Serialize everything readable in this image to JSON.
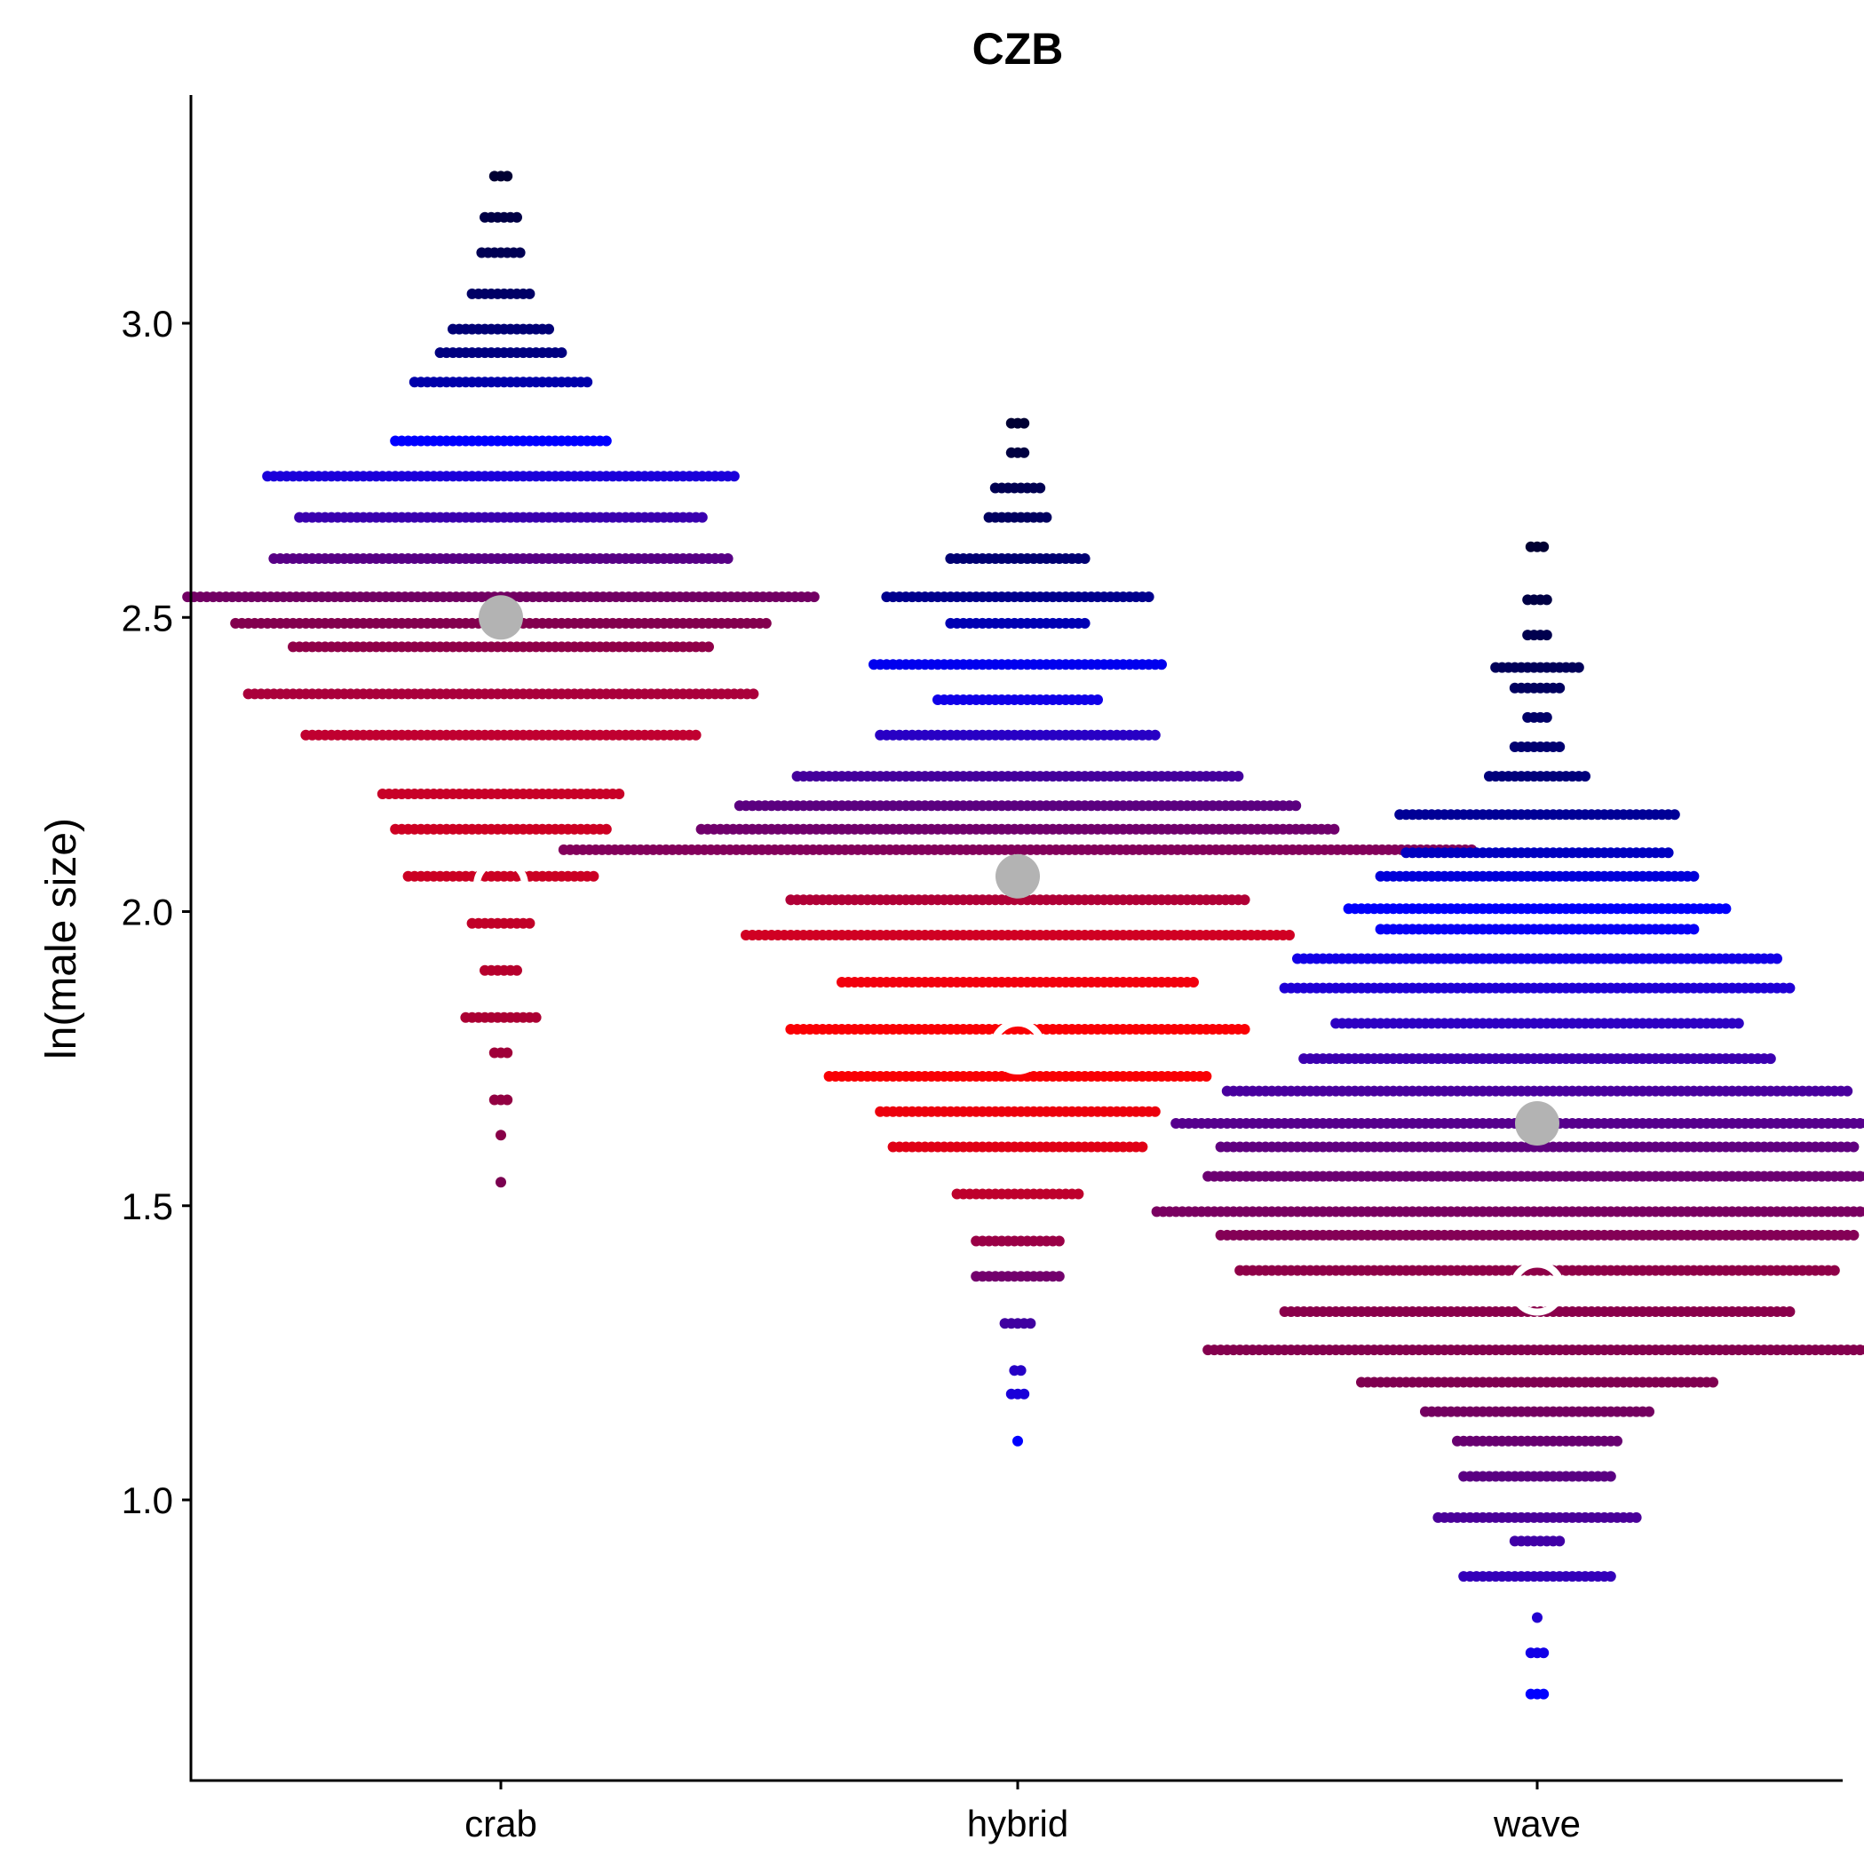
{
  "chart_data": {
    "type": "scatter",
    "subtype": "beeswarm",
    "title": "CZB",
    "xlabel": "",
    "ylabel": "ln(male size)",
    "categories": [
      "crab",
      "hybrid",
      "wave"
    ],
    "y_ticks": [
      {
        "value": 1.0,
        "label": "1.0"
      },
      {
        "value": 1.5,
        "label": "1.5"
      },
      {
        "value": 2.0,
        "label": "2.0"
      },
      {
        "value": 2.5,
        "label": "2.5"
      },
      {
        "value": 3.0,
        "label": "3.0"
      }
    ],
    "ylim": [
      0.62,
      3.4
    ],
    "grid": false,
    "legend": "none",
    "color_gradient": {
      "high": "#000033",
      "upper": "#0000ff",
      "lower": "#ff0000"
    },
    "series": [
      {
        "category": "crab",
        "y_min": 1.54,
        "y_max": 3.25,
        "color_anchors": [
          {
            "y": 1.54,
            "color": "#7a0050"
          },
          {
            "y": 1.85,
            "color": "#b00030"
          },
          {
            "y": 2.1,
            "color": "#d00020"
          },
          {
            "y": 2.3,
            "color": "#c00030"
          },
          {
            "y": 2.5,
            "color": "#800050"
          },
          {
            "y": 2.62,
            "color": "#500090"
          },
          {
            "y": 2.8,
            "color": "#0000ff"
          },
          {
            "y": 2.95,
            "color": "#000080"
          },
          {
            "y": 3.25,
            "color": "#000033"
          }
        ],
        "density": [
          {
            "y": 1.54,
            "count": 1
          },
          {
            "y": 1.62,
            "count": 1
          },
          {
            "y": 1.68,
            "count": 3
          },
          {
            "y": 1.76,
            "count": 3
          },
          {
            "y": 1.82,
            "count": 12
          },
          {
            "y": 1.9,
            "count": 6
          },
          {
            "y": 1.98,
            "count": 10
          },
          {
            "y": 2.06,
            "count": 30
          },
          {
            "y": 2.14,
            "count": 34
          },
          {
            "y": 2.2,
            "count": 38
          },
          {
            "y": 2.3,
            "count": 62
          },
          {
            "y": 2.37,
            "count": 80
          },
          {
            "y": 2.45,
            "count": 66
          },
          {
            "y": 2.49,
            "count": 84
          },
          {
            "y": 2.535,
            "count": 99
          },
          {
            "y": 2.6,
            "count": 72
          },
          {
            "y": 2.67,
            "count": 64
          },
          {
            "y": 2.74,
            "count": 74
          },
          {
            "y": 2.8,
            "count": 34
          },
          {
            "y": 2.9,
            "count": 28
          },
          {
            "y": 2.95,
            "count": 20
          },
          {
            "y": 2.99,
            "count": 16
          },
          {
            "y": 3.05,
            "count": 10
          },
          {
            "y": 3.12,
            "count": 7
          },
          {
            "y": 3.18,
            "count": 6
          },
          {
            "y": 3.25,
            "count": 3
          }
        ],
        "mean_filled": 2.5,
        "mean_open": 2.045
      },
      {
        "category": "hybrid",
        "y_min": 1.1,
        "y_max": 2.83,
        "color_anchors": [
          {
            "y": 1.1,
            "color": "#0000ff"
          },
          {
            "y": 1.3,
            "color": "#4000a0"
          },
          {
            "y": 1.45,
            "color": "#a00040"
          },
          {
            "y": 1.6,
            "color": "#e00015"
          },
          {
            "y": 1.75,
            "color": "#ff0000"
          },
          {
            "y": 1.9,
            "color": "#f00010"
          },
          {
            "y": 2.05,
            "color": "#a00040"
          },
          {
            "y": 2.2,
            "color": "#50008a"
          },
          {
            "y": 2.4,
            "color": "#0000ff"
          },
          {
            "y": 2.55,
            "color": "#000080"
          },
          {
            "y": 2.83,
            "color": "#000033"
          }
        ],
        "density": [
          {
            "y": 1.1,
            "count": 1
          },
          {
            "y": 1.18,
            "count": 3
          },
          {
            "y": 1.22,
            "count": 2
          },
          {
            "y": 1.3,
            "count": 5
          },
          {
            "y": 1.38,
            "count": 14
          },
          {
            "y": 1.44,
            "count": 14
          },
          {
            "y": 1.52,
            "count": 20
          },
          {
            "y": 1.6,
            "count": 40
          },
          {
            "y": 1.66,
            "count": 44
          },
          {
            "y": 1.72,
            "count": 60
          },
          {
            "y": 1.8,
            "count": 72
          },
          {
            "y": 1.88,
            "count": 56
          },
          {
            "y": 1.96,
            "count": 86
          },
          {
            "y": 2.02,
            "count": 72
          },
          {
            "y": 2.105,
            "count": 143
          },
          {
            "y": 2.14,
            "count": 100
          },
          {
            "y": 2.18,
            "count": 88
          },
          {
            "y": 2.23,
            "count": 70
          },
          {
            "y": 2.3,
            "count": 44
          },
          {
            "y": 2.36,
            "count": 26
          },
          {
            "y": 2.42,
            "count": 46
          },
          {
            "y": 2.49,
            "count": 22
          },
          {
            "y": 2.535,
            "count": 42
          },
          {
            "y": 2.6,
            "count": 22
          },
          {
            "y": 2.67,
            "count": 10
          },
          {
            "y": 2.72,
            "count": 8
          },
          {
            "y": 2.78,
            "count": 3
          },
          {
            "y": 2.83,
            "count": 3
          }
        ],
        "mean_filled": 2.06,
        "mean_open": 1.77
      },
      {
        "category": "wave",
        "y_min": 0.67,
        "y_max": 2.62,
        "color_anchors": [
          {
            "y": 0.67,
            "color": "#0000ff"
          },
          {
            "y": 0.85,
            "color": "#3000c0"
          },
          {
            "y": 1.0,
            "color": "#500090"
          },
          {
            "y": 1.2,
            "color": "#800050"
          },
          {
            "y": 1.4,
            "color": "#900048"
          },
          {
            "y": 1.6,
            "color": "#600080"
          },
          {
            "y": 1.8,
            "color": "#3000c0"
          },
          {
            "y": 2.0,
            "color": "#0000ff"
          },
          {
            "y": 2.2,
            "color": "#000080"
          },
          {
            "y": 2.62,
            "color": "#000033"
          }
        ],
        "density": [
          {
            "y": 0.67,
            "count": 3
          },
          {
            "y": 0.74,
            "count": 3
          },
          {
            "y": 0.8,
            "count": 1
          },
          {
            "y": 0.87,
            "count": 24
          },
          {
            "y": 0.93,
            "count": 8
          },
          {
            "y": 0.97,
            "count": 32
          },
          {
            "y": 1.04,
            "count": 24
          },
          {
            "y": 1.1,
            "count": 26
          },
          {
            "y": 1.15,
            "count": 36
          },
          {
            "y": 1.2,
            "count": 56
          },
          {
            "y": 1.255,
            "count": 104
          },
          {
            "y": 1.32,
            "count": 80
          },
          {
            "y": 1.39,
            "count": 94
          },
          {
            "y": 1.45,
            "count": 100
          },
          {
            "y": 1.49,
            "count": 120
          },
          {
            "y": 1.55,
            "count": 104
          },
          {
            "y": 1.6,
            "count": 100
          },
          {
            "y": 1.64,
            "count": 114
          },
          {
            "y": 1.695,
            "count": 98
          },
          {
            "y": 1.75,
            "count": 74
          },
          {
            "y": 1.81,
            "count": 64
          },
          {
            "y": 1.87,
            "count": 80
          },
          {
            "y": 1.92,
            "count": 76
          },
          {
            "y": 1.97,
            "count": 50
          },
          {
            "y": 2.005,
            "count": 60
          },
          {
            "y": 2.06,
            "count": 50
          },
          {
            "y": 2.1,
            "count": 42
          },
          {
            "y": 2.165,
            "count": 44
          },
          {
            "y": 2.23,
            "count": 16
          },
          {
            "y": 2.28,
            "count": 8
          },
          {
            "y": 2.33,
            "count": 4
          },
          {
            "y": 2.38,
            "count": 8
          },
          {
            "y": 2.415,
            "count": 14
          },
          {
            "y": 2.47,
            "count": 4
          },
          {
            "y": 2.53,
            "count": 4
          },
          {
            "y": 2.62,
            "count": 3
          }
        ],
        "mean_filled": 1.64,
        "mean_open": 1.36
      }
    ],
    "colors": {
      "mean_filled": "#b3b3b3",
      "mean_open_stroke": "#ffffff",
      "axis": "#000000"
    }
  }
}
